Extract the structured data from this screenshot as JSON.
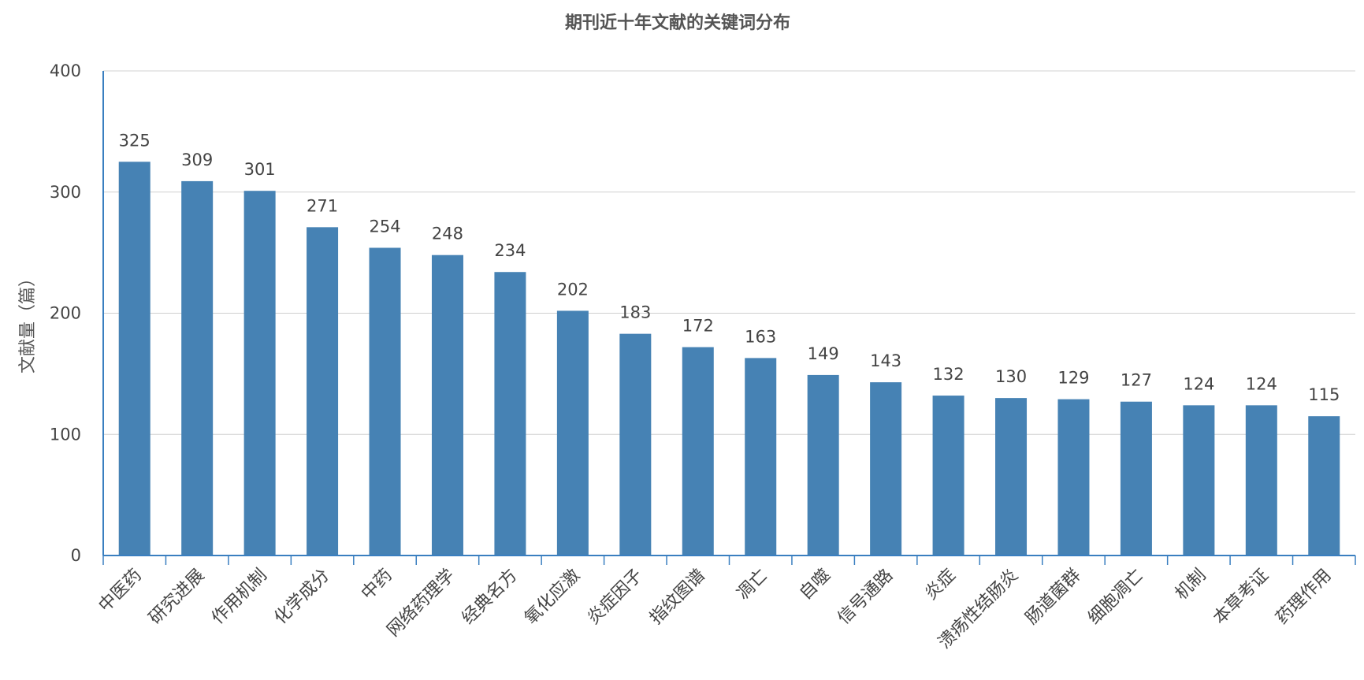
{
  "chart_data": {
    "type": "bar",
    "title": "期刊近十年文献的关键词分布",
    "xlabel": "",
    "ylabel": "文献量（篇）",
    "ylim": [
      0,
      400
    ],
    "y_ticks": [
      0,
      100,
      200,
      300,
      400
    ],
    "grid": true,
    "bar_color": "#4682b4",
    "axis_color": "#3a7fc0",
    "categories": [
      "中医药",
      "研究进展",
      "作用机制",
      "化学成分",
      "中药",
      "网络药理学",
      "经典名方",
      "氧化应激",
      "炎症因子",
      "指纹图谱",
      "凋亡",
      "自噬",
      "信号通路",
      "炎症",
      "溃疡性结肠炎",
      "肠道菌群",
      "细胞凋亡",
      "机制",
      "本草考证",
      "药理作用"
    ],
    "values": [
      325,
      309,
      301,
      271,
      254,
      248,
      234,
      202,
      183,
      172,
      163,
      149,
      143,
      132,
      130,
      129,
      127,
      124,
      124,
      115
    ]
  }
}
